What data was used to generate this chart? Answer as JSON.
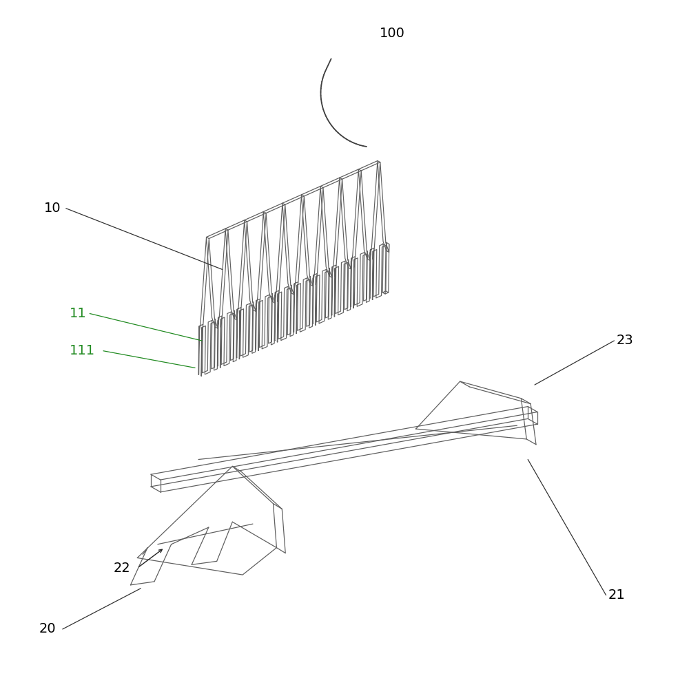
{
  "bg_color": "#ffffff",
  "line_color": "#606060",
  "line_color_dark": "#333333",
  "green_line": "#228B22",
  "label_color": "#000000",
  "fig_width": 10.0,
  "fig_height": 9.85
}
